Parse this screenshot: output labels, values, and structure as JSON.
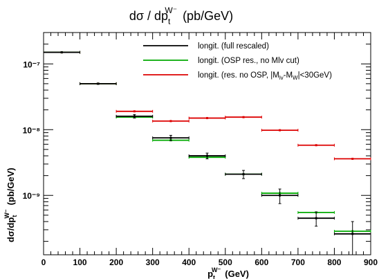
{
  "chart_data": {
    "type": "scatter",
    "title": "dσ / dp",
    "title_sub": "t",
    "title_sup": "W⁻",
    "title_unit": "(pb/GeV)",
    "xlabel": {
      "main": "p",
      "sub": "t",
      "sup": "W⁻",
      "unit": "(GeV)"
    },
    "ylabel": {
      "main": "dσ/dp",
      "sub": "t",
      "sup": "W⁻",
      "unit": "(pb/GeV)"
    },
    "x_axis": {
      "min": 0,
      "max": 900,
      "ticks": [
        "0",
        "100",
        "200",
        "300",
        "400",
        "500",
        "600",
        "700",
        "800",
        "900"
      ]
    },
    "y_axis": {
      "scale": "log",
      "min": 1.25e-10,
      "max": 3e-07,
      "ticks": [
        "10⁻⁹",
        "10⁻⁸",
        "10⁻⁷"
      ],
      "tick_values": [
        1e-09,
        1e-08,
        1e-07
      ]
    },
    "legend_position": "top-right",
    "series": [
      {
        "name": "longit. (full rescaled)",
        "color": "#000000",
        "points": [
          {
            "x_low": 0,
            "x_high": 100,
            "y": 1.5e-07,
            "err": 1.5e-09
          },
          {
            "x_low": 100,
            "x_high": 200,
            "y": 5e-08,
            "err": 1e-09
          },
          {
            "x_low": 200,
            "x_high": 300,
            "y": 1.6e-08,
            "err": 1e-09
          },
          {
            "x_low": 300,
            "x_high": 400,
            "y": 7.5e-09,
            "err": 7e-10
          },
          {
            "x_low": 400,
            "x_high": 500,
            "y": 4e-09,
            "err": 4e-10
          },
          {
            "x_low": 500,
            "x_high": 600,
            "y": 2.1e-09,
            "err": 3e-10
          },
          {
            "x_low": 600,
            "x_high": 700,
            "y": 1e-09,
            "err": 2.5e-10
          },
          {
            "x_low": 700,
            "x_high": 800,
            "y": 4.5e-10,
            "err": 1.1e-10
          },
          {
            "x_low": 800,
            "x_high": 900,
            "y": 2.6e-10,
            "err": 1.4e-10
          }
        ]
      },
      {
        "name": "longit. (OSP res., no Mlv cut)",
        "color": "#00aa00",
        "points": [
          {
            "x_low": 0,
            "x_high": 100,
            "y": 1.5e-07,
            "err": 0
          },
          {
            "x_low": 100,
            "x_high": 200,
            "y": 5e-08,
            "err": 0
          },
          {
            "x_low": 200,
            "x_high": 300,
            "y": 1.55e-08,
            "err": 0
          },
          {
            "x_low": 300,
            "x_high": 400,
            "y": 6.9e-09,
            "err": 0
          },
          {
            "x_low": 400,
            "x_high": 500,
            "y": 3.8e-09,
            "err": 0
          },
          {
            "x_low": 500,
            "x_high": 600,
            "y": 2.1e-09,
            "err": 0
          },
          {
            "x_low": 600,
            "x_high": 700,
            "y": 1.08e-09,
            "err": 0
          },
          {
            "x_low": 700,
            "x_high": 800,
            "y": 5.5e-10,
            "err": 0
          },
          {
            "x_low": 800,
            "x_high": 900,
            "y": 2.85e-10,
            "err": 0
          }
        ]
      },
      {
        "name": "longit. (res. no OSP, |M",
        "name_sub1": "lv",
        "name_mid": "-M",
        "name_sub2": "W",
        "name_end": "|<30GeV)",
        "color": "#dd0000",
        "points": [
          {
            "x_low": 0,
            "x_high": 100,
            "y": 1.5e-07,
            "err": 0
          },
          {
            "x_low": 100,
            "x_high": 200,
            "y": 5e-08,
            "err": 0
          },
          {
            "x_low": 200,
            "x_high": 300,
            "y": 1.9e-08,
            "err": 0
          },
          {
            "x_low": 300,
            "x_high": 400,
            "y": 1.35e-08,
            "err": 0
          },
          {
            "x_low": 400,
            "x_high": 500,
            "y": 1.5e-08,
            "err": 0
          },
          {
            "x_low": 500,
            "x_high": 600,
            "y": 1.55e-08,
            "err": 0
          },
          {
            "x_low": 600,
            "x_high": 700,
            "y": 9.8e-09,
            "err": 0
          },
          {
            "x_low": 700,
            "x_high": 800,
            "y": 5.8e-09,
            "err": 0
          },
          {
            "x_low": 800,
            "x_high": 900,
            "y": 3.6e-09,
            "err": 0
          }
        ]
      }
    ]
  }
}
